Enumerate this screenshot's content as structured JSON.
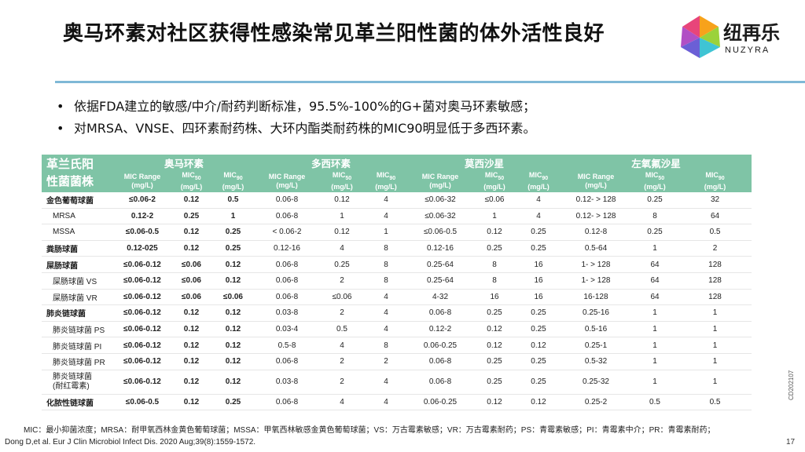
{
  "title": "奥马环素对社区获得性感染常见革兰阳性菌的体外活性良好",
  "logo": {
    "text": "纽再乐",
    "sub": "NUZYRA"
  },
  "bullets": [
    "依据FDA建立的敏感/中介/耐药判断标准，95.5%-100%的G+菌对奥马环素敏感；",
    "对MRSA、VNSE、四环素耐药株、大环内酯类耐药株的MIC90明显低于多西环素。"
  ],
  "table": {
    "corner": [
      "革兰氏阳",
      "性菌菌株"
    ],
    "drugs": [
      "奥马环素",
      "多西环素",
      "莫西沙星",
      "左氧氟沙星"
    ],
    "subheaders": [
      {
        "line1": "MIC Range",
        "line2": "(mg/L)",
        "sub": ""
      },
      {
        "line1": "MIC",
        "line2": "(mg/L)",
        "sub": "50"
      },
      {
        "line1": "MIC",
        "line2": "(mg/L)",
        "sub": "90"
      }
    ],
    "rows": [
      {
        "name": "金色葡萄球菌",
        "cells": [
          "≤0.06-2",
          "0.12",
          "0.5",
          "0.06-8",
          "0.12",
          "4",
          "≤0.06-32",
          "≤0.06",
          "4",
          "0.12- > 128",
          "0.25",
          "32"
        ]
      },
      {
        "name": "MRSA",
        "cells": [
          "0.12-2",
          "0.25",
          "1",
          "0.06-8",
          "1",
          "4",
          "≤0.06-32",
          "1",
          "4",
          "0.12- > 128",
          "8",
          "64"
        ]
      },
      {
        "name": "MSSA",
        "cells": [
          "≤0.06-0.5",
          "0.12",
          "0.25",
          "< 0.06-2",
          "0.12",
          "1",
          "≤0.06-0.5",
          "0.12",
          "0.25",
          "0.12-8",
          "0.25",
          "0.5"
        ]
      },
      {
        "name": "粪肠球菌",
        "cells": [
          "0.12-025",
          "0.12",
          "0.25",
          "0.12-16",
          "4",
          "8",
          "0.12-16",
          "0.25",
          "0.25",
          "0.5-64",
          "1",
          "2"
        ]
      },
      {
        "name": "屎肠球菌",
        "cells": [
          "≤0.06-0.12",
          "≤0.06",
          "0.12",
          "0.06-8",
          "0.25",
          "8",
          "0.25-64",
          "8",
          "16",
          "1- > 128",
          "64",
          "128"
        ]
      },
      {
        "name": "屎肠球菌 VS",
        "cells": [
          "≤0.06-0.12",
          "≤0.06",
          "0.12",
          "0.06-8",
          "2",
          "8",
          "0.25-64",
          "8",
          "16",
          "1- > 128",
          "64",
          "128"
        ]
      },
      {
        "name": "屎肠球菌 VR",
        "cells": [
          "≤0.06-0.12",
          "≤0.06",
          "≤0.06",
          "0.06-8",
          "≤0.06",
          "4",
          "4-32",
          "16",
          "16",
          "16-128",
          "64",
          "128"
        ]
      },
      {
        "name": "肺炎链球菌",
        "cells": [
          "≤0.06-0.12",
          "0.12",
          "0.12",
          "0.03-8",
          "2",
          "4",
          "0.06-8",
          "0.25",
          "0.25",
          "0.25-16",
          "1",
          "1"
        ]
      },
      {
        "name": "肺炎链球菌  PS",
        "cells": [
          "≤0.06-0.12",
          "0.12",
          "0.12",
          "0.03-4",
          "0.5",
          "4",
          "0.12-2",
          "0.12",
          "0.25",
          "0.5-16",
          "1",
          "1"
        ]
      },
      {
        "name": "肺炎链球菌  PI",
        "cells": [
          "≤0.06-0.12",
          "0.12",
          "0.12",
          "0.5-8",
          "4",
          "8",
          "0.06-0.25",
          "0.12",
          "0.12",
          "0.25-1",
          "1",
          "1"
        ]
      },
      {
        "name": "肺炎链球菌  PR",
        "cells": [
          "≤0.06-0.12",
          "0.12",
          "0.12",
          "0.06-8",
          "2",
          "2",
          "0.06-8",
          "0.25",
          "0.25",
          "0.5-32",
          "1",
          "1"
        ]
      },
      {
        "name": "肺炎链球菌",
        "name2": "(耐红霉素)",
        "cells": [
          "≤0.06-0.12",
          "0.12",
          "0.12",
          "0.03-8",
          "2",
          "4",
          "0.06-8",
          "0.25",
          "0.25",
          "0.25-32",
          "1",
          "1"
        ]
      },
      {
        "name": "化脓性链球菌",
        "cells": [
          "≤0.06-0.5",
          "0.12",
          "0.25",
          "0.06-8",
          "4",
          "4",
          "0.06-0.25",
          "0.12",
          "0.12",
          "0.25-2",
          "0.5",
          "0.5"
        ]
      }
    ]
  },
  "footnote": "MIC：最小抑菌浓度；MRSA：耐甲氧西林金黄色葡萄球菌；MSSA：甲氧西林敏感金黄色葡萄球菌；VS：万古霉素敏感；VR：万古霉素耐药；PS：青霉素敏感；PI：青霉素中介；PR：青霉素耐药；",
  "citation": "Dong D,et al. Eur J Clin Microbiol Infect Dis. 2020 Aug;39(8):1559-1572.",
  "page_number": "17",
  "doc_code": "CD202107",
  "colors": {
    "header_green": "#7fc4a6",
    "rule_blue": "#7fb8d6"
  }
}
